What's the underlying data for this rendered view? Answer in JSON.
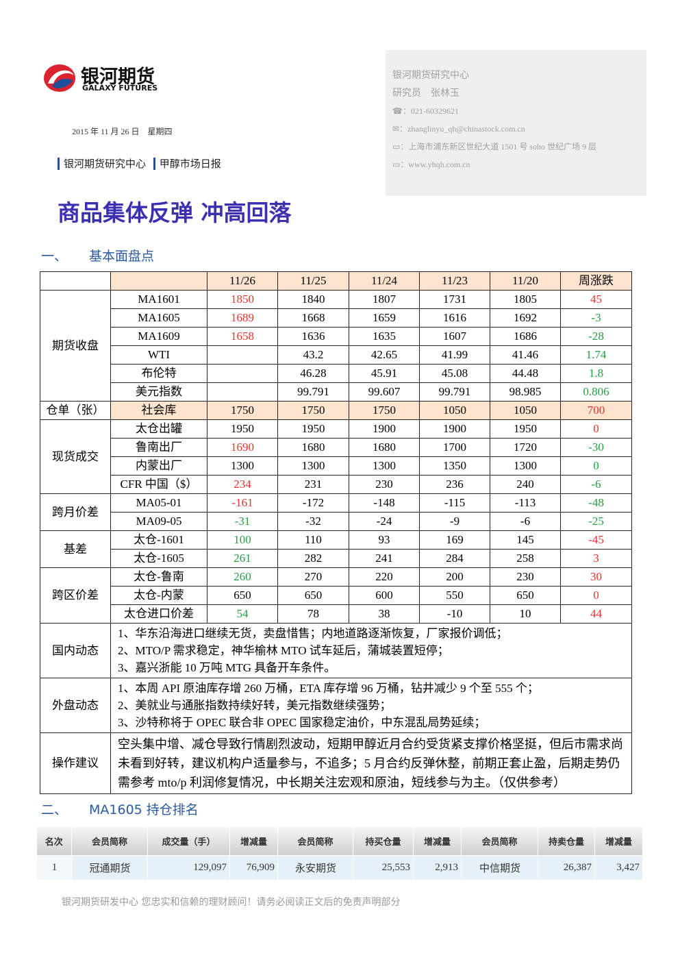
{
  "header": {
    "logo_cn": "银河期货",
    "logo_en": "GALAXY FUTURES",
    "date": "2015 年 11 月 26 日　星期四",
    "tags": [
      "银河期货研究中心",
      "甲醇市场日报"
    ]
  },
  "contact": {
    "org": "银河期货研究中心",
    "researcher": "研究员　张林玉",
    "phone": "021-60329621",
    "email": "zhanglinyu_qh@chinastock.com.cn",
    "address": "上海市浦东新区世纪大道 1501 号 soho 世纪广场 9 层",
    "web": "www.yhqh.com.cn"
  },
  "title": "商品集体反弹 冲高回落",
  "section1": {
    "num": "一、",
    "title": "基本面盘点"
  },
  "table1": {
    "columns": [
      "11/26",
      "11/25",
      "11/24",
      "11/23",
      "11/20",
      "周涨跌"
    ],
    "groups": [
      {
        "label": "期货收盘",
        "rows": [
          {
            "name": "MA1601",
            "cells": [
              "1850",
              "1840",
              "1807",
              "1731",
              "1805",
              "45"
            ],
            "colors": [
              "#e8322e",
              null,
              null,
              null,
              null,
              "#e8322e"
            ]
          },
          {
            "name": "MA1605",
            "cells": [
              "1689",
              "1668",
              "1659",
              "1616",
              "1692",
              "-3"
            ],
            "colors": [
              "#e8322e",
              null,
              null,
              null,
              null,
              "#22a040"
            ]
          },
          {
            "name": "MA1609",
            "cells": [
              "1658",
              "1636",
              "1635",
              "1607",
              "1686",
              "-28"
            ],
            "colors": [
              "#e8322e",
              null,
              null,
              null,
              null,
              "#22a040"
            ]
          },
          {
            "name": "WTI",
            "cells": [
              null,
              "43.2",
              "42.65",
              "41.99",
              "41.46",
              "1.74"
            ],
            "colors": [
              null,
              null,
              null,
              null,
              null,
              "#22a040"
            ]
          },
          {
            "name": "布伦特",
            "cells": [
              null,
              "46.28",
              "45.91",
              "45.08",
              "44.48",
              "1.8"
            ],
            "colors": [
              null,
              null,
              null,
              null,
              null,
              "#22a040"
            ]
          },
          {
            "name": "美元指数",
            "cells": [
              null,
              "99.791",
              "99.607",
              "99.791",
              "98.985",
              "0.806"
            ],
            "colors": [
              null,
              null,
              null,
              null,
              null,
              "#22a040"
            ]
          }
        ]
      },
      {
        "label": "仓单（张）",
        "highlight": true,
        "rows": [
          {
            "name": "社会库",
            "cells": [
              "1750",
              "1750",
              "1750",
              "1050",
              "1050",
              "700"
            ],
            "colors": [
              null,
              null,
              null,
              null,
              null,
              "#e8322e"
            ]
          }
        ]
      },
      {
        "label": "现货成交",
        "rows": [
          {
            "name": "太仓出罐",
            "cells": [
              "1950",
              "1950",
              "1900",
              "1900",
              "1950",
              "0"
            ],
            "colors": [
              null,
              null,
              null,
              null,
              null,
              "#e8322e"
            ]
          },
          {
            "name": "鲁南出厂",
            "cells": [
              "1690",
              "1680",
              "1680",
              "1700",
              "1720",
              "-30"
            ],
            "colors": [
              "#e8322e",
              null,
              null,
              null,
              null,
              "#22a040"
            ]
          },
          {
            "name": "内蒙出厂",
            "cells": [
              "1300",
              "1300",
              "1300",
              "1350",
              "1300",
              "0"
            ],
            "colors": [
              null,
              null,
              null,
              null,
              null,
              "#22a040"
            ]
          },
          {
            "name": "CFR 中国（$）",
            "cells": [
              "234",
              "231",
              "230",
              "236",
              "240",
              "-6"
            ],
            "colors": [
              "#e8322e",
              null,
              null,
              null,
              null,
              "#22a040"
            ]
          }
        ]
      },
      {
        "label": "跨月价差",
        "rows": [
          {
            "name": "MA05-01",
            "cells": [
              "-161",
              "-172",
              "-148",
              "-115",
              "-113",
              "-48"
            ],
            "colors": [
              "#e8322e",
              null,
              null,
              null,
              null,
              "#22a040"
            ]
          },
          {
            "name": "MA09-05",
            "cells": [
              "-31",
              "-32",
              "-24",
              "-9",
              "-6",
              "-25"
            ],
            "colors": [
              "#22a040",
              null,
              null,
              null,
              null,
              "#22a040"
            ]
          }
        ]
      },
      {
        "label": "基差",
        "rows": [
          {
            "name": "太仓-1601",
            "cells": [
              "100",
              "110",
              "93",
              "169",
              "145",
              "-45"
            ],
            "colors": [
              "#22a040",
              null,
              null,
              null,
              null,
              "#e8322e"
            ]
          },
          {
            "name": "太仓-1605",
            "cells": [
              "261",
              "282",
              "241",
              "284",
              "258",
              "3"
            ],
            "colors": [
              "#22a040",
              null,
              null,
              null,
              null,
              "#e8322e"
            ]
          }
        ]
      },
      {
        "label": "跨区价差",
        "rows": [
          {
            "name": "太仓-鲁南",
            "cells": [
              "260",
              "270",
              "220",
              "200",
              "230",
              "30"
            ],
            "colors": [
              "#22a040",
              null,
              null,
              null,
              null,
              "#e8322e"
            ]
          },
          {
            "name": "太仓-内蒙",
            "cells": [
              "650",
              "650",
              "600",
              "550",
              "650",
              "0"
            ],
            "colors": [
              null,
              null,
              null,
              null,
              null,
              "#e8322e"
            ]
          },
          {
            "name": "太仓进口价差",
            "cells": [
              "54",
              "78",
              "38",
              "-10",
              "10",
              "44"
            ],
            "colors": [
              "#22a040",
              null,
              null,
              null,
              null,
              "#e8322e"
            ]
          }
        ]
      }
    ],
    "notes": [
      {
        "label": "国内动态",
        "lines": [
          "1、华东沿海进口继续无货，卖盘惜售；内地道路逐渐恢复，厂家报价调低；",
          "2、MTO/P 需求稳定，神华榆林 MTO 试车延后，蒲城装置短停；",
          "3、嘉兴浙能 10 万吨 MTG 具备开车条件。"
        ]
      },
      {
        "label": "外盘动态",
        "lines": [
          "1、本周 API 原油库存增 260 万桶，ETA 库存增 96 万桶，钻井减少 9 个至 555 个；",
          "2、美就业与通胀指数持续好转，美元指数继续强势；",
          "3、沙特称将于 OPEC 联合非 OPEC 国家稳定油价，中东混乱局势延续；"
        ]
      },
      {
        "label": "操作建议",
        "lines": [
          "空头集中增、减仓导致行情剧烈波动，短期甲醇近月合约受货紧支撑价格坚挺，但后市需求尚未看到好转，建议机构户适量参与，不追多；5 月合约反弹休整，前期正套止盈，后期走势仍需参考 mto/p 利润修复情况，中长期关注宏观和原油，短线参与为主。（仅供参考）"
        ]
      }
    ]
  },
  "section2": {
    "num": "二、",
    "title": "MA1605 持仓排名"
  },
  "table2": {
    "columns": [
      "名次",
      "会员简称",
      "成交量（手）",
      "增减量",
      "会员简称",
      "持买仓量",
      "增减量",
      "会员简称",
      "持卖仓量",
      "增减量"
    ],
    "rows": [
      [
        "1",
        "冠通期货",
        "129,097",
        "76,909",
        "永安期货",
        "25,553",
        "2,913",
        "中信期货",
        "26,387",
        "3,427"
      ]
    ]
  },
  "footer": "银河期货研发中心  您忠实和信赖的理财顾问！请务必阅读正文后的免责声明部分"
}
